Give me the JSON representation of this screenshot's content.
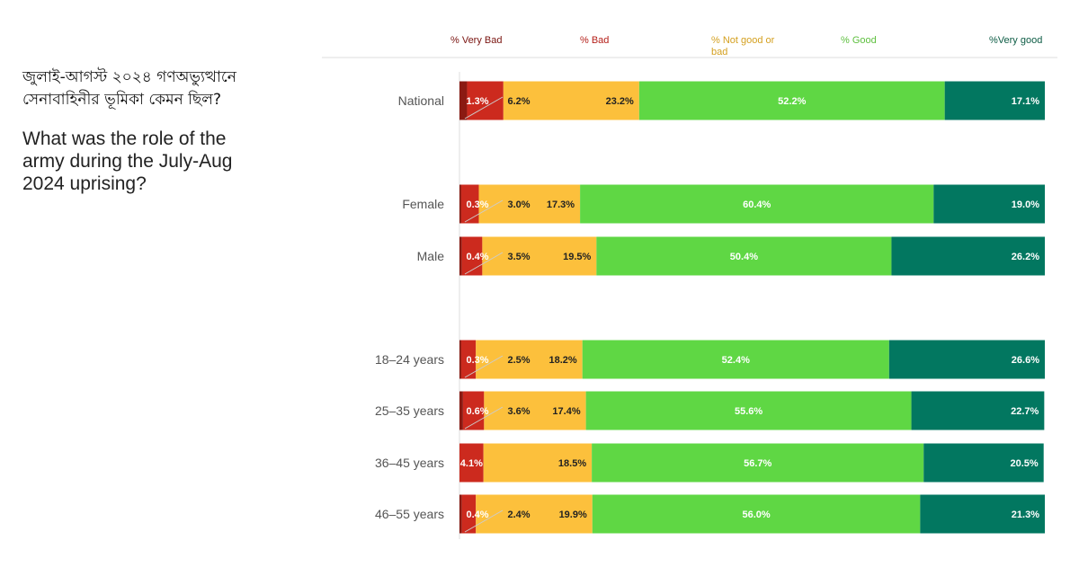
{
  "title_bn": "জুলাই-আগস্ট ২০২৪ গণঅভ্যুত্থানে সেনাবাহিনীর ভূমিকা কেমন ছিল?",
  "title_en": "What was the role of the army during the July-Aug 2024 uprising?",
  "chart_data": {
    "type": "bar",
    "orientation": "horizontal",
    "stacked": true,
    "unit": "%",
    "xlim": [
      0,
      100
    ],
    "legend_position": "top",
    "categories": [
      "National",
      "Female",
      "Male",
      "18–24 years",
      "25–35 years",
      "36–45 years",
      "46–55 years"
    ],
    "series": [
      {
        "name": "% Very Bad",
        "color": "#8b1a12",
        "values": [
          1.3,
          0.3,
          0.4,
          0.3,
          0.6,
          null,
          0.4
        ]
      },
      {
        "name": "% Bad",
        "color": "#cc2a1e",
        "values": [
          6.2,
          3.0,
          3.5,
          2.5,
          3.6,
          4.1,
          2.4
        ]
      },
      {
        "name": "% Not good  or bad",
        "color": "#fcc03c",
        "values": [
          23.2,
          17.3,
          19.5,
          18.2,
          17.4,
          18.5,
          19.9
        ]
      },
      {
        "name": "% Good",
        "color": "#5fd744",
        "values": [
          52.2,
          60.4,
          50.4,
          52.4,
          55.6,
          56.7,
          56.0
        ]
      },
      {
        "name": "%Very good",
        "color": "#027760",
        "values": [
          17.1,
          19.0,
          26.2,
          26.6,
          22.7,
          20.5,
          21.3
        ]
      }
    ],
    "legend_colors": [
      "#7a1410",
      "#b5201a",
      "#d4a020",
      "#5fc040",
      "#0d5c45"
    ]
  }
}
